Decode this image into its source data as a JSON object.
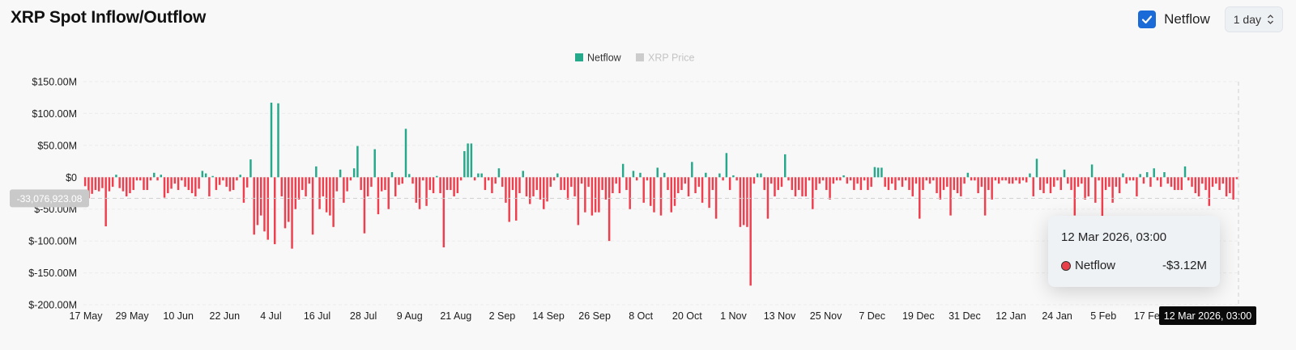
{
  "header": {
    "title": "XRP Spot Inflow/Outflow",
    "netflow_checkbox": {
      "label": "Netflow",
      "checked": true
    },
    "interval_select": {
      "value": "1 day"
    }
  },
  "colors": {
    "positive": "#26a88a",
    "negative": "#ef3e4d",
    "price": "#cccccc",
    "accent": "#1a6ad8"
  },
  "tooltip": {
    "time": "12 Mar 2026, 03:00",
    "series": "Netflow",
    "value": "-$3.12M"
  },
  "chart_data": {
    "type": "bar",
    "legend": [
      {
        "name": "Netflow",
        "color": "#26a88a",
        "active": true
      },
      {
        "name": "XRP Price",
        "color": "#cccccc",
        "active": false
      }
    ],
    "legend_position": "top-center",
    "x_tick_labels": [
      "17 May",
      "29 May",
      "10 Jun",
      "22 Jun",
      "4 Jul",
      "16 Jul",
      "28 Jul",
      "9 Aug",
      "21 Aug",
      "2 Sep",
      "14 Sep",
      "26 Sep",
      "8 Oct",
      "20 Oct",
      "1 Nov",
      "13 Nov",
      "25 Nov",
      "7 Dec",
      "19 Dec",
      "31 Dec",
      "12 Jan",
      "24 Jan",
      "5 Feb",
      "17 Feb"
    ],
    "x_range": [
      "17 May 2025",
      "12 Mar 2026"
    ],
    "y_ticks": [
      150,
      100,
      50,
      0,
      -50,
      -100,
      -150,
      -200
    ],
    "y_tick_labels": [
      "$150.00M",
      "$100.00M",
      "$50.00M",
      "$0",
      "$-50.00M",
      "$-100.00M",
      "$-150.00M",
      "$-200.00M"
    ],
    "ylim": [
      -200,
      150
    ],
    "y_unit": "$M",
    "grid": true,
    "crosshair": {
      "y_label": "-33,076,923.08",
      "y_value": -33.08,
      "x_label": "12 Mar 2026, 03:00"
    },
    "series": [
      {
        "name": "Netflow",
        "values": [
          -14,
          -33,
          -26,
          -20,
          -22,
          -17,
          -77,
          -22,
          -15,
          4,
          -17,
          -22,
          -30,
          -25,
          -20,
          -5,
          -5,
          -20,
          -20,
          -5,
          7,
          -5,
          4,
          -32,
          -25,
          -18,
          -10,
          -20,
          -5,
          -15,
          -20,
          -25,
          -30,
          -18,
          10,
          6,
          -30,
          2,
          -20,
          -12,
          -5,
          -15,
          -22,
          -20,
          -5,
          4,
          -40,
          -16,
          28,
          -90,
          -75,
          -60,
          -85,
          -98,
          117,
          -105,
          116,
          -30,
          -80,
          -70,
          -112,
          -50,
          -35,
          -20,
          -30,
          -10,
          -90,
          17,
          -50,
          -30,
          -55,
          -60,
          -78,
          -22,
          12,
          -40,
          -22,
          -5,
          14,
          49,
          -20,
          -88,
          -30,
          -15,
          44,
          -58,
          -22,
          -20,
          -50,
          8,
          -30,
          -12,
          -10,
          76,
          5,
          -10,
          -40,
          -50,
          -5,
          -45,
          -20,
          -25,
          2,
          -25,
          -110,
          -20,
          -20,
          -30,
          -25,
          -5,
          41,
          53,
          53,
          -5,
          6,
          6,
          -20,
          -5,
          -25,
          -10,
          14,
          -15,
          -40,
          -70,
          -20,
          -68,
          -25,
          10,
          -30,
          -42,
          -30,
          -20,
          -35,
          -50,
          -38,
          -15,
          -5,
          6,
          -20,
          -20,
          -35,
          -15,
          -30,
          -75,
          -10,
          -55,
          -15,
          -60,
          -55,
          -55,
          -20,
          -35,
          -100,
          -25,
          -10,
          -25,
          21,
          -20,
          -50,
          10,
          -5,
          7,
          -40,
          -5,
          -45,
          -55,
          15,
          -60,
          7,
          -20,
          -55,
          -45,
          -25,
          -20,
          -10,
          -30,
          24,
          -25,
          -15,
          -40,
          7,
          -48,
          -20,
          -65,
          6,
          -5,
          38,
          -20,
          3,
          -5,
          -78,
          -75,
          -78,
          -170,
          -10,
          6,
          6,
          -20,
          -65,
          -10,
          -30,
          -20,
          -15,
          36,
          -5,
          -20,
          -30,
          -20,
          -30,
          -30,
          -5,
          -50,
          -20,
          -10,
          -5,
          -20,
          -35,
          -10,
          -5,
          -5,
          3,
          -10,
          -5,
          -20,
          -10,
          -20,
          -5,
          -20,
          -15,
          16,
          15,
          15,
          -15,
          -20,
          -10,
          -20,
          -5,
          -15,
          -5,
          -20,
          -30,
          -10,
          -65,
          -20,
          -5,
          -10,
          -5,
          -25,
          -35,
          -20,
          -15,
          -60,
          -20,
          -25,
          -30,
          -10,
          7,
          -5,
          -5,
          -25,
          -15,
          -60,
          -20,
          -35,
          -5,
          -10,
          -5,
          -5,
          -10,
          -10,
          -5,
          -10,
          -5,
          -8,
          6,
          -30,
          29,
          -20,
          -25,
          -10,
          -25,
          -15,
          -5,
          -20,
          12,
          -10,
          -20,
          -60,
          -15,
          -10,
          -35,
          -30,
          20,
          -40,
          -5,
          -65,
          -20,
          -15,
          -40,
          -15,
          -25,
          6,
          -10,
          -5,
          -5,
          -30,
          5,
          -10,
          8,
          -15,
          14,
          -5,
          -15,
          8,
          -10,
          -15,
          -20,
          -20,
          -20,
          17,
          -5,
          -15,
          -25,
          -30,
          -10,
          -20,
          -45,
          -15,
          -10,
          -20,
          -10,
          -30,
          -25,
          -35,
          -3
        ]
      }
    ]
  }
}
